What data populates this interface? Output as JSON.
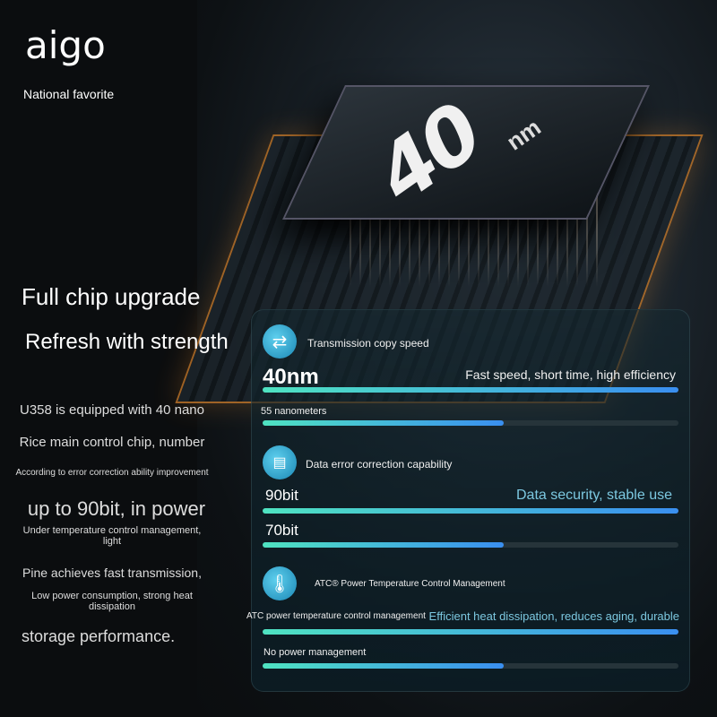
{
  "brand": {
    "logo": "aigo",
    "tagline": "National favorite"
  },
  "chip": {
    "label": "40",
    "unit": "nm"
  },
  "left": {
    "headline1": "Full chip upgrade",
    "headline2": "Refresh with strength",
    "lines": [
      "U358 is equipped with 40 nano",
      "Rice main control chip, number",
      "According to error correction ability improvement",
      "up to 90bit, in power",
      "Under temperature control management, light",
      "Pine achieves fast transmission,",
      "Low power consumption, strong heat dissipation",
      "storage performance."
    ]
  },
  "panel": {
    "sections": [
      {
        "icon": "transfer-arrows-icon",
        "title": "Transmission copy speed",
        "tagline": "Fast speed, short time, high efficiency",
        "bars": [
          {
            "label": "40nm",
            "value": 100
          },
          {
            "label": "55 nanometers",
            "value": 58
          }
        ]
      },
      {
        "icon": "document-shield-icon",
        "title": "Data error correction capability",
        "tagline": "Data security, stable use",
        "bars": [
          {
            "label": "90bit",
            "value": 100
          },
          {
            "label": "70bit",
            "value": 58
          }
        ]
      },
      {
        "icon": "thermometer-icon",
        "title": "ATC® Power Temperature Control Management",
        "tagline": "Efficient heat dissipation, reduces aging, durable",
        "bars": [
          {
            "label": "ATC power temperature control management",
            "value": 100
          },
          {
            "label": "No power management",
            "value": 58
          }
        ]
      }
    ]
  }
}
